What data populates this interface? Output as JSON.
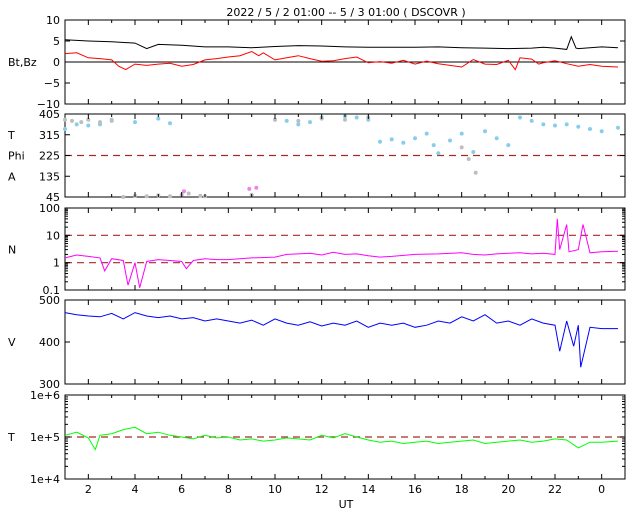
{
  "title": "2022  /  5  /  2   01:00  --   5  /  3   01:00  ( DSCOVR )",
  "xlabel": "UT",
  "x_ticks": [
    "2",
    "4",
    "6",
    "8",
    "10",
    "12",
    "14",
    "16",
    "18",
    "20",
    "22",
    "0"
  ],
  "colors": {
    "bt": "#000000",
    "bz": "#ff0000",
    "theta": "#87ceeb",
    "phi": "#bebebe",
    "phi_highlight": "#ee82ee",
    "density": "#ff00ff",
    "velocity": "#0000ff",
    "temperature": "#00ff00",
    "reference_line": "#a52a2a"
  },
  "panels": [
    {
      "ylabel": "Bt,Bz",
      "yticks": [
        "10",
        "5",
        "0",
        "−5",
        "−10"
      ]
    },
    {
      "ylabel_top": "T",
      "ylabel_mid": "Phi",
      "ylabel_bottom": "A",
      "yticks": [
        "405",
        "315",
        "225",
        "135",
        "45"
      ]
    },
    {
      "ylabel": "N",
      "yticks": [
        "100",
        "10",
        "1",
        "0.1"
      ]
    },
    {
      "ylabel": "V",
      "yticks": [
        "500",
        "400",
        "300"
      ]
    },
    {
      "ylabel": "T",
      "yticks": [
        "1e+6",
        "1e+5",
        "1e+4"
      ]
    }
  ],
  "chart_data": [
    {
      "type": "line",
      "panel": "magnetic_field",
      "x_unit": "hours UT from 2022-05-02 00:00",
      "ylim": [
        -10,
        10
      ],
      "series": [
        {
          "key": "bt",
          "x": [
            1,
            2,
            3,
            4,
            4.5,
            5,
            6,
            7,
            8,
            9,
            10,
            11,
            12,
            13,
            14,
            15,
            16,
            17,
            18,
            19,
            20,
            21,
            21.5,
            22,
            22.5,
            22.7,
            22.9,
            23,
            24,
            24.7
          ],
          "y": [
            5.3,
            5.0,
            4.8,
            4.5,
            3.2,
            4.2,
            4.0,
            3.6,
            3.6,
            3.4,
            3.7,
            3.9,
            3.8,
            3.6,
            3.5,
            3.5,
            3.5,
            3.6,
            3.4,
            3.3,
            3.2,
            3.3,
            3.5,
            3.3,
            3.0,
            6.0,
            3.3,
            3.2,
            3.6,
            3.4
          ]
        },
        {
          "key": "bz",
          "x": [
            1,
            1.5,
            2,
            2.5,
            3,
            3.3,
            3.6,
            4,
            4.5,
            5,
            5.5,
            6,
            6.5,
            7,
            7.5,
            8,
            8.5,
            9,
            9.3,
            9.5,
            10,
            10.5,
            11,
            11.5,
            12,
            12.5,
            13,
            13.5,
            14,
            14.5,
            15,
            15.5,
            16,
            16.5,
            17,
            17.5,
            18,
            18.5,
            19,
            19.5,
            20,
            20.3,
            20.5,
            21,
            21.3,
            21.5,
            22,
            22.5,
            23,
            23.5,
            24,
            24.7
          ],
          "y": [
            2.0,
            2.2,
            1.0,
            0.8,
            0.5,
            -1.0,
            -1.8,
            -0.5,
            -0.8,
            -0.5,
            -0.3,
            -1.0,
            -0.6,
            0.5,
            0.8,
            1.2,
            1.5,
            2.5,
            1.5,
            2.2,
            0.5,
            1.0,
            1.5,
            0.8,
            0.2,
            0.3,
            0.8,
            1.2,
            -0.2,
            0.1,
            -0.3,
            0.4,
            -0.5,
            0.2,
            -0.4,
            -0.8,
            -1.2,
            0.6,
            -0.5,
            -0.6,
            0.4,
            -1.8,
            1.0,
            0.7,
            -0.5,
            -0.2,
            0.3,
            -0.4,
            -1.0,
            -0.6,
            -1.0,
            -1.2
          ]
        }
      ]
    },
    {
      "type": "scatter",
      "panel": "angles",
      "x_unit": "hours UT from 2022-05-02 00:00",
      "ylim": [
        45,
        405
      ],
      "reference_lines": [
        225
      ],
      "series": [
        {
          "key": "theta",
          "x": [
            1,
            1.5,
            2,
            2.5,
            3,
            4,
            5,
            5.5,
            10,
            10.5,
            11,
            11.5,
            12,
            13,
            13.5,
            14,
            14.5,
            15,
            15.5,
            16,
            16.5,
            16.8,
            17,
            17.5,
            18,
            18.5,
            19,
            19.5,
            20,
            20.5,
            21,
            21.5,
            22,
            22.5,
            23,
            23.5,
            24,
            24.7
          ],
          "y": [
            340,
            360,
            355,
            360,
            380,
            370,
            385,
            365,
            380,
            375,
            360,
            370,
            390,
            395,
            390,
            380,
            285,
            295,
            280,
            300,
            320,
            270,
            235,
            290,
            320,
            240,
            330,
            300,
            270,
            390,
            375,
            360,
            355,
            360,
            350,
            340,
            330,
            345
          ]
        },
        {
          "key": "phi",
          "x": [
            1,
            1.3,
            1.7,
            2,
            2.5,
            3,
            3.5,
            4,
            4.5,
            5,
            5.5,
            6,
            6.3,
            6.8,
            7,
            9,
            10,
            11,
            12,
            13,
            14,
            18,
            18.3,
            18.6
          ],
          "y": [
            380,
            375,
            370,
            380,
            370,
            375,
            45,
            50,
            48,
            52,
            48,
            55,
            60,
            50,
            48,
            55,
            380,
            375,
            385,
            380,
            390,
            260,
            210,
            150
          ]
        },
        {
          "key": "phi_highlight",
          "x": [
            6.1,
            8.9,
            9.2
          ],
          "y": [
            70,
            80,
            85
          ]
        }
      ]
    },
    {
      "type": "line",
      "panel": "density",
      "y_scale": "log",
      "ylim": [
        0.1,
        100
      ],
      "reference_lines": [
        1,
        10
      ],
      "series": [
        {
          "key": "density",
          "x": [
            1,
            1.5,
            2,
            2.5,
            2.7,
            3,
            3.5,
            3.7,
            4,
            4.2,
            4.5,
            5,
            5.5,
            6,
            6.2,
            6.5,
            7,
            7.5,
            8,
            8.5,
            9,
            10,
            10.5,
            11,
            11.5,
            12,
            12.5,
            13,
            13.5,
            14,
            14.5,
            15,
            16,
            17,
            18,
            18.5,
            19,
            19.5,
            20,
            20.5,
            21,
            21.5,
            22,
            22.1,
            22.2,
            22.5,
            22.6,
            23,
            23.2,
            23.5,
            24,
            24.7
          ],
          "y": [
            1.5,
            1.9,
            1.7,
            1.5,
            0.5,
            1.4,
            1.2,
            0.15,
            1.0,
            0.12,
            1.1,
            1.3,
            1.2,
            1.1,
            0.6,
            1.2,
            1.4,
            1.3,
            1.3,
            1.4,
            1.5,
            1.6,
            2.0,
            2.1,
            2.2,
            1.9,
            2.4,
            2.0,
            2.1,
            1.8,
            1.6,
            1.7,
            2.0,
            2.1,
            2.3,
            2.0,
            1.9,
            2.1,
            2.2,
            2.3,
            2.1,
            2.2,
            2.0,
            40,
            3.0,
            25,
            2.5,
            3.0,
            25,
            2.3,
            2.5,
            2.6
          ]
        }
      ]
    },
    {
      "type": "line",
      "panel": "velocity",
      "ylim": [
        300,
        500
      ],
      "series": [
        {
          "key": "velocity",
          "x": [
            1,
            1.5,
            2,
            2.5,
            3,
            3.5,
            4,
            4.5,
            5,
            5.5,
            6,
            6.5,
            7,
            7.5,
            8,
            8.5,
            9,
            9.5,
            10,
            10.5,
            11,
            11.5,
            12,
            12.5,
            13,
            13.5,
            14,
            14.5,
            15,
            15.5,
            16,
            16.5,
            17,
            17.5,
            18,
            18.5,
            19,
            19.5,
            20,
            20.5,
            21,
            21.5,
            22,
            22.2,
            22.5,
            22.8,
            23,
            23.1,
            23.5,
            24,
            24.7
          ],
          "y": [
            470,
            465,
            462,
            460,
            468,
            455,
            470,
            462,
            458,
            462,
            455,
            458,
            450,
            455,
            450,
            445,
            452,
            440,
            455,
            445,
            440,
            448,
            438,
            445,
            440,
            450,
            435,
            445,
            440,
            445,
            435,
            440,
            450,
            445,
            460,
            450,
            465,
            445,
            450,
            440,
            455,
            445,
            440,
            378,
            450,
            390,
            440,
            340,
            435,
            432,
            432
          ]
        }
      ]
    },
    {
      "type": "line",
      "panel": "temperature",
      "y_scale": "log",
      "ylim": [
        10000,
        1000000
      ],
      "reference_lines": [
        100000
      ],
      "series": [
        {
          "key": "temperature",
          "x": [
            1,
            1.5,
            2,
            2.3,
            2.5,
            3,
            3.5,
            4,
            4.5,
            5,
            5.5,
            6,
            6.5,
            7,
            7.5,
            8,
            8.5,
            9,
            9.5,
            10,
            10.5,
            11,
            11.5,
            12,
            12.5,
            13,
            13.5,
            14,
            14.5,
            15,
            15.5,
            16,
            16.5,
            17,
            17.5,
            18,
            18.5,
            19,
            19.5,
            20,
            20.5,
            21,
            21.5,
            22,
            22.5,
            23,
            23.5,
            24,
            24.7
          ],
          "y": [
            110000,
            130000,
            95000,
            50000,
            110000,
            120000,
            150000,
            170000,
            120000,
            130000,
            110000,
            100000,
            90000,
            110000,
            95000,
            100000,
            85000,
            90000,
            80000,
            85000,
            95000,
            90000,
            85000,
            110000,
            95000,
            120000,
            100000,
            85000,
            75000,
            80000,
            70000,
            75000,
            80000,
            70000,
            75000,
            80000,
            85000,
            70000,
            75000,
            80000,
            85000,
            75000,
            80000,
            90000,
            85000,
            55000,
            75000,
            75000,
            80000
          ]
        }
      ]
    }
  ]
}
